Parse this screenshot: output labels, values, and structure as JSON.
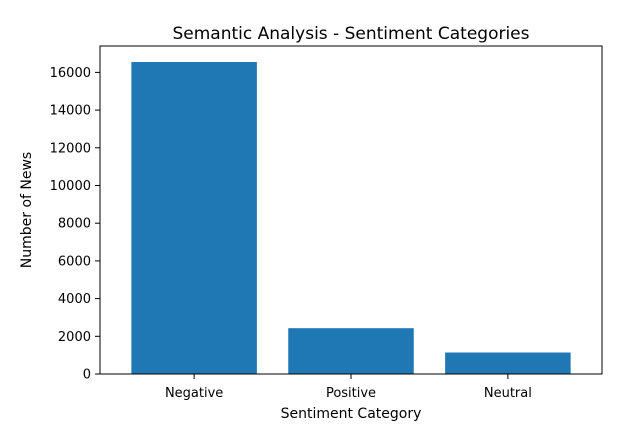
{
  "chart_data": {
    "type": "bar",
    "title": "Semantic Analysis - Sentiment Categories",
    "xlabel": "Sentiment Category",
    "ylabel": "Number of News",
    "categories": [
      "Negative",
      "Positive",
      "Neutral"
    ],
    "values": [
      16550,
      2430,
      1140
    ],
    "ylim": [
      0,
      17400
    ],
    "yticks": [
      0,
      2000,
      4000,
      6000,
      8000,
      10000,
      12000,
      14000,
      16000
    ],
    "grid": false,
    "bar_color": "#1f77b4"
  }
}
